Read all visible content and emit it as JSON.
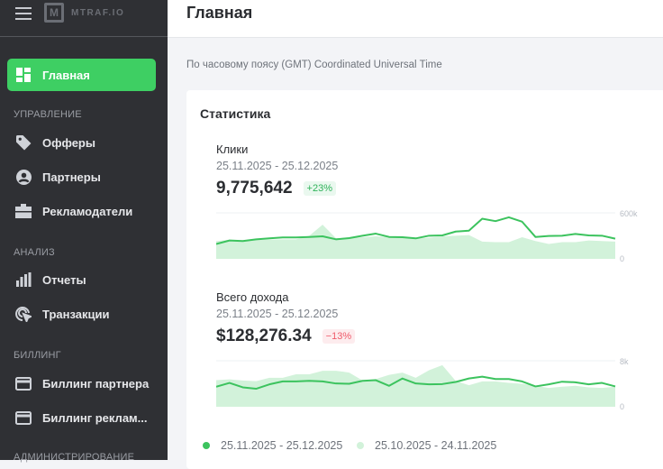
{
  "sidebar": {
    "brand": "MTRAF.IO",
    "items": [
      {
        "label": "Главная",
        "icon": "dashboard-icon",
        "active": true
      },
      {
        "label": "Офферы",
        "icon": "tag-icon"
      },
      {
        "label": "Партнеры",
        "icon": "user-circle-icon"
      },
      {
        "label": "Рекламодатели",
        "icon": "briefcase-icon"
      },
      {
        "label": "Отчеты",
        "icon": "bar-chart-icon"
      },
      {
        "label": "Транзакции",
        "icon": "cursor-click-icon"
      },
      {
        "label": "Биллинг партнера",
        "icon": "credit-card-icon"
      },
      {
        "label": "Биллинг реклам...",
        "icon": "credit-card-icon"
      }
    ],
    "sections": [
      "УПРАВЛЕНИЕ",
      "АНАЛИЗ",
      "БИЛЛИНГ",
      "АДМИНИСТРИРОВАНИЕ"
    ]
  },
  "header": {
    "title": "Главная"
  },
  "timezone": "По часовому поясу (GMT) Coordinated Universal Time",
  "stats": {
    "title": "Статистика",
    "clicks": {
      "label": "Клики",
      "range": "25.11.2025 - 25.12.2025",
      "value": "9,775,642",
      "change": "+23%"
    },
    "revenue": {
      "label": "Всего дохода",
      "range": "25.11.2025 - 25.12.2025",
      "value": "$128,276.34",
      "change": "−13%"
    },
    "legend": [
      "25.11.2025 - 25.12.2025",
      "25.10.2025 - 24.11.2025"
    ]
  },
  "colors": {
    "accent": "#3ecf63",
    "current": "#3cc35e",
    "previous": "#d2f2da",
    "up": "#2fb35a",
    "down": "#ef5a6a"
  },
  "chart_data": [
    {
      "type": "line",
      "ylim": [
        0,
        600000
      ],
      "yticks": [
        "600k",
        "0"
      ],
      "grid": true,
      "series": [
        {
          "name": "25.11.2025 - 25.12.2025",
          "values": [
            194000,
            240000,
            232000,
            255000,
            267000,
            279000,
            279000,
            286000,
            294000,
            255000,
            271000,
            302000,
            329000,
            286000,
            283000,
            267000,
            302000,
            306000,
            356000,
            368000,
            523000,
            492000,
            542000,
            484000,
            286000,
            298000,
            302000,
            325000,
            306000,
            302000,
            263000
          ]
        },
        {
          "name": "25.10.2025 - 24.11.2025",
          "values": [
            232000,
            248000,
            240000,
            248000,
            252000,
            255000,
            255000,
            302000,
            445000,
            271000,
            271000,
            283000,
            294000,
            286000,
            279000,
            271000,
            275000,
            294000,
            302000,
            310000,
            225000,
            217000,
            217000,
            283000,
            232000,
            194000,
            217000,
            217000,
            240000,
            232000,
            225000
          ]
        }
      ]
    },
    {
      "type": "line",
      "ylim": [
        0,
        8000
      ],
      "yticks": [
        "8k",
        "0"
      ],
      "grid": true,
      "series": [
        {
          "name": "25.11.2025 - 25.12.2025",
          "values": [
            3490,
            4150,
            3380,
            3130,
            3900,
            4410,
            4410,
            4510,
            4410,
            4050,
            4000,
            4510,
            4620,
            3640,
            4920,
            4050,
            3900,
            3950,
            4310,
            4920,
            5230,
            4820,
            4820,
            4410,
            3540,
            3900,
            4360,
            4260,
            3900,
            4150,
            3540
          ]
        },
        {
          "name": "25.10.2025 - 24.11.2025",
          "values": [
            4620,
            4770,
            4560,
            4460,
            5030,
            5030,
            5640,
            5640,
            6260,
            6260,
            5950,
            4560,
            4820,
            5540,
            5950,
            5030,
            6360,
            7230,
            4510,
            3740,
            4410,
            4410,
            4150,
            4000,
            3640,
            3280,
            3490,
            3640,
            3380,
            3280,
            3500
          ]
        }
      ]
    }
  ]
}
